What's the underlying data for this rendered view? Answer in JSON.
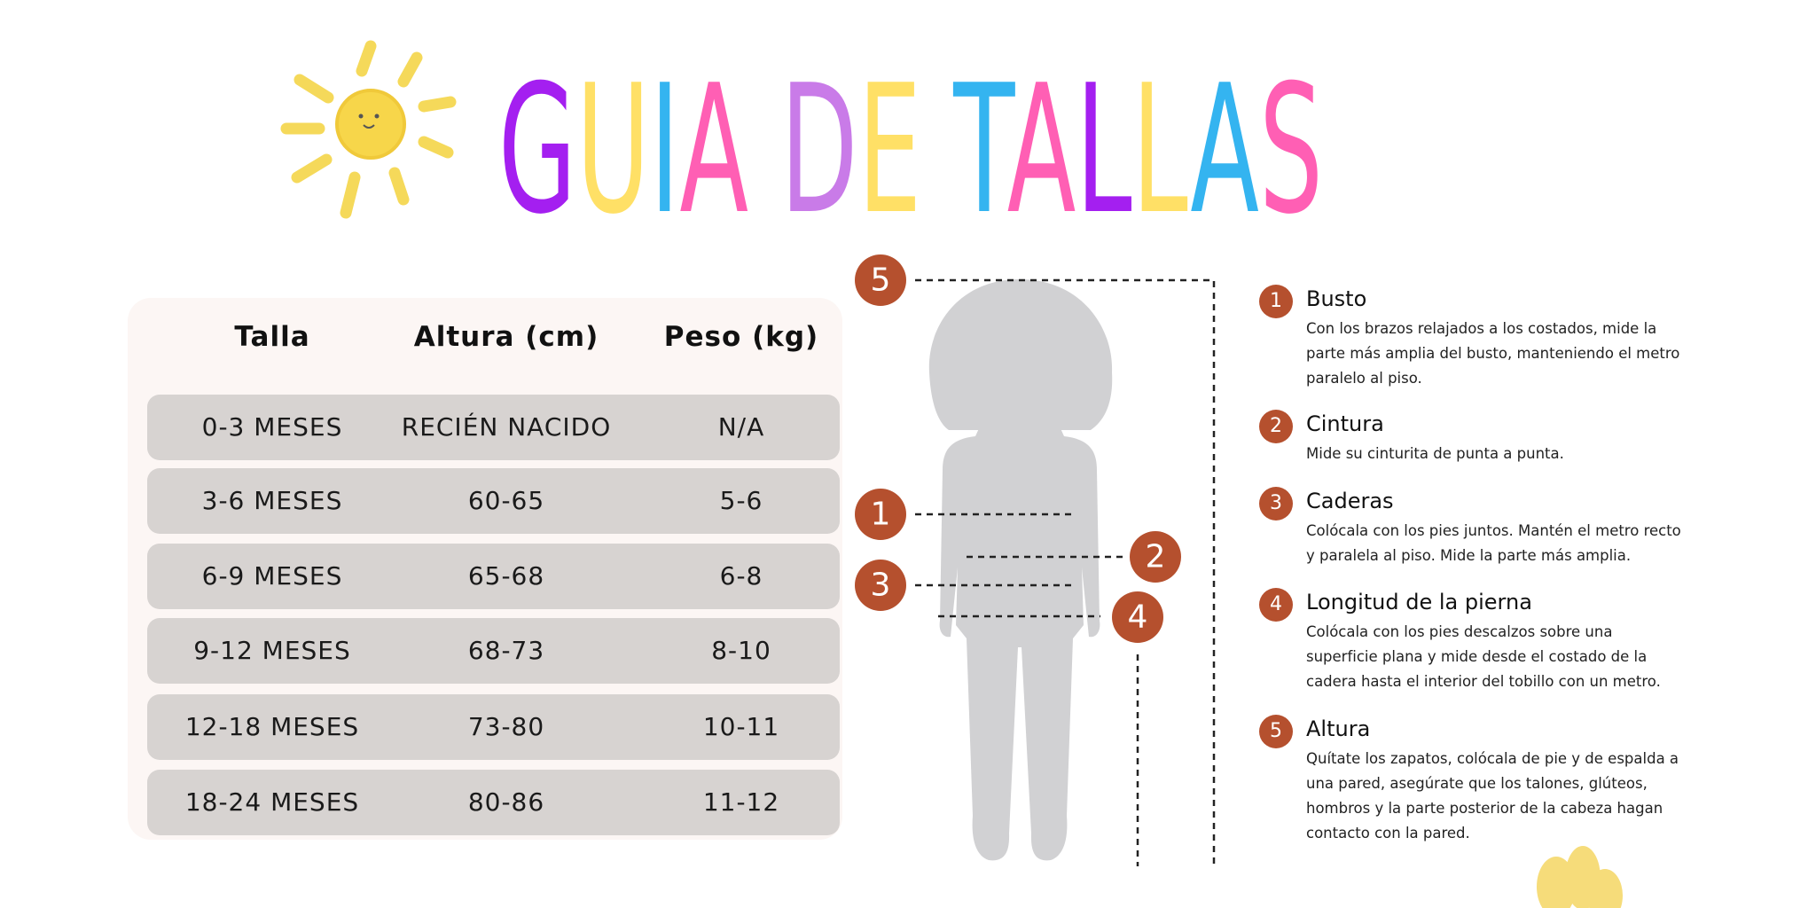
{
  "header": {
    "title": "GUIA DE TALLAS"
  },
  "table": {
    "columns": [
      "Talla",
      "Altura (cm)",
      "Peso (kg)"
    ],
    "rows": [
      [
        "0-3 MESES",
        "RECIÉN NACIDO",
        "N/A"
      ],
      [
        "3-6 MESES",
        "60-65",
        "5-6"
      ],
      [
        "6-9 MESES",
        "65-68",
        "6-8"
      ],
      [
        "9-12 MESES",
        "68-73",
        "8-10"
      ],
      [
        "12-18 MESES",
        "73-80",
        "10-11"
      ],
      [
        "18-24 MESES",
        "80-86",
        "11-12"
      ]
    ]
  },
  "measures": [
    {
      "number": "1",
      "title": "Busto",
      "text": "Con los brazos relajados a los costados, mide la parte más amplia del busto, manteniendo el metro paralelo al piso."
    },
    {
      "number": "2",
      "title": "Cintura",
      "text": "Mide su cinturita de punta a punta."
    },
    {
      "number": "3",
      "title": "Caderas",
      "text": "Colócala con los pies juntos. Mantén el metro recto y paralela al piso. Mide la parte más amplia."
    },
    {
      "number": "4",
      "title": "Longitud de la pierna",
      "text": "Colócala con los pies descalzos sobre una superficie plana y mide desde el costado de la cadera hasta el interior del tobillo con un metro."
    },
    {
      "number": "5",
      "title": "Altura",
      "text": "Quítate los zapatos, colócala de pie y de espalda a una pared, asegúrate que los talones, glúteos, hombros y la parte posterior de la cabeza hagan contacto con la pared."
    }
  ]
}
